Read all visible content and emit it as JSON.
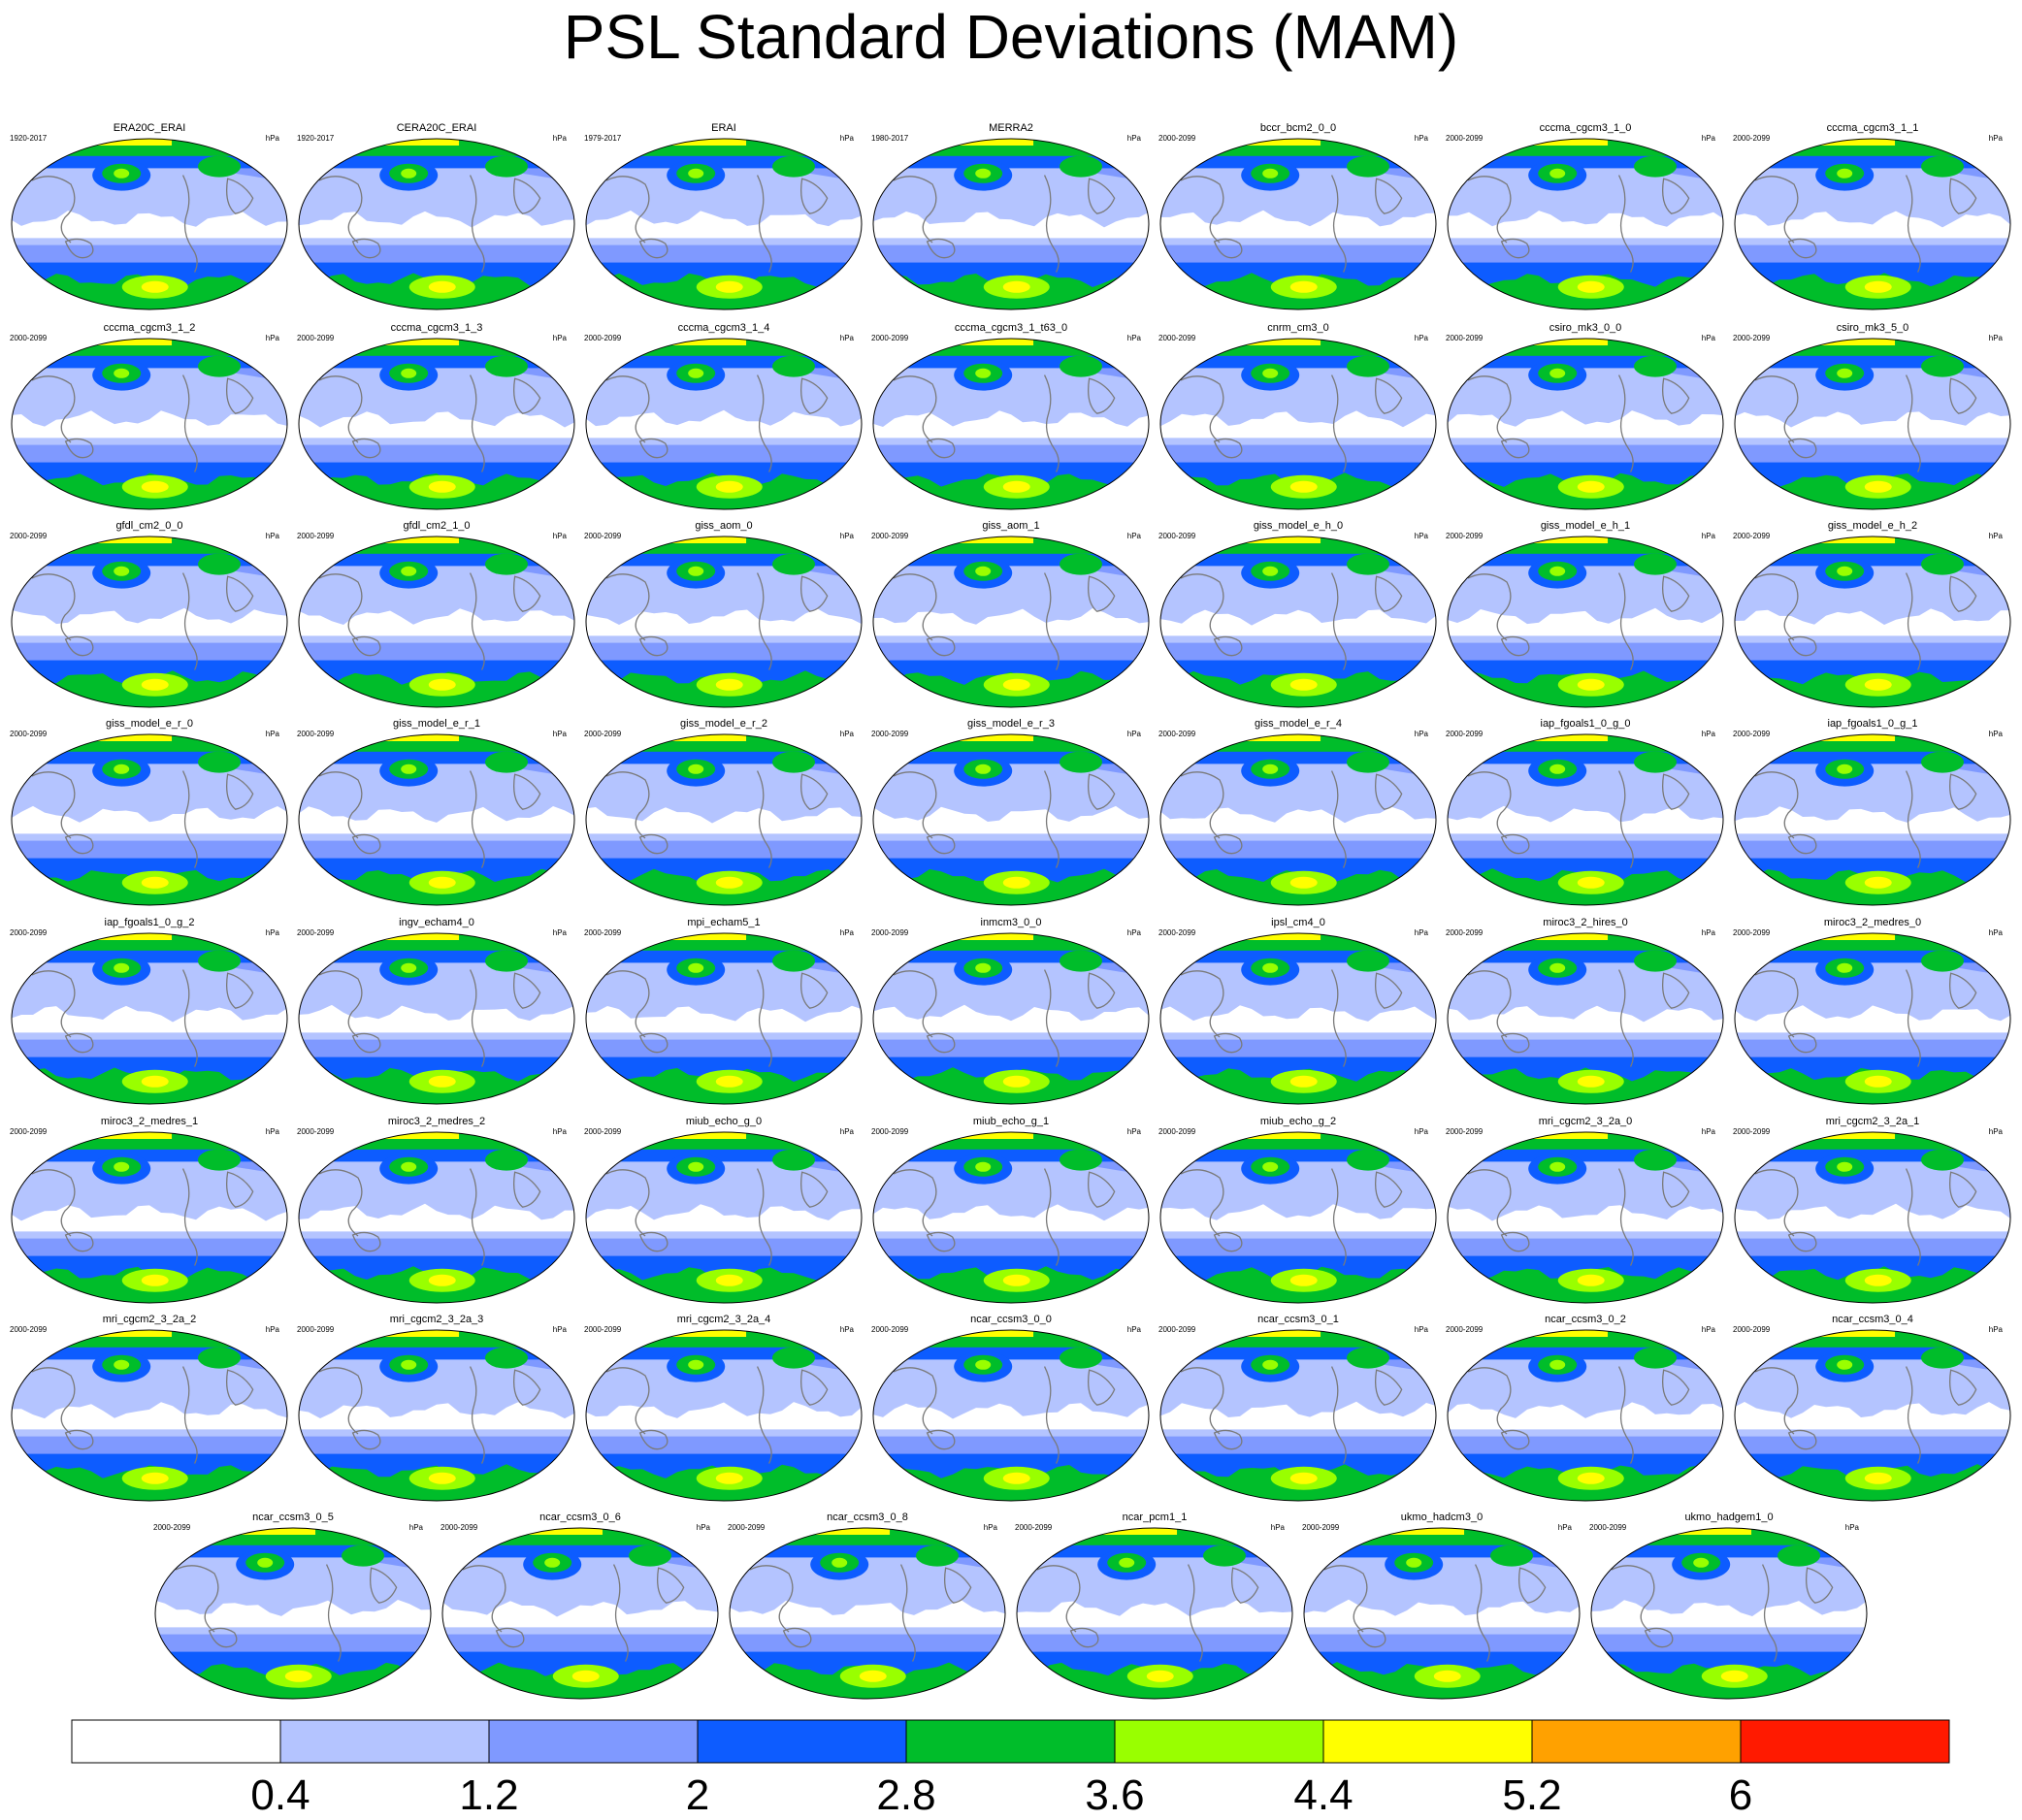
{
  "chart_data": {
    "type": "heatmap",
    "title": "PSL Standard Deviations (MAM)",
    "units": "hPa",
    "colorbar": {
      "levels": [
        0.4,
        1.2,
        2,
        2.8,
        3.6,
        4.4,
        5.2,
        6
      ],
      "tick_labels": [
        "0.4",
        "1.2",
        "2",
        "2.8",
        "3.6",
        "4.4",
        "5.2",
        "6"
      ],
      "colors": [
        "#ffffff",
        "#b4c4ff",
        "#7f99ff",
        "#0d5cff",
        "#00bd2a",
        "#99ff00",
        "#ffff00",
        "#ffa100",
        "#ff1a00"
      ]
    },
    "panels": [
      {
        "name": "ERA20C_ERAI",
        "period": "1920-2017",
        "units": "hPa"
      },
      {
        "name": "CERA20C_ERAI",
        "period": "1920-2017",
        "units": "hPa"
      },
      {
        "name": "ERAI",
        "period": "1979-2017",
        "units": "hPa"
      },
      {
        "name": "MERRA2",
        "period": "1980-2017",
        "units": "hPa"
      },
      {
        "name": "bccr_bcm2_0_0",
        "period": "2000-2099",
        "units": "hPa"
      },
      {
        "name": "cccma_cgcm3_1_0",
        "period": "2000-2099",
        "units": "hPa"
      },
      {
        "name": "cccma_cgcm3_1_1",
        "period": "2000-2099",
        "units": "hPa"
      },
      {
        "name": "cccma_cgcm3_1_2",
        "period": "2000-2099",
        "units": "hPa"
      },
      {
        "name": "cccma_cgcm3_1_3",
        "period": "2000-2099",
        "units": "hPa"
      },
      {
        "name": "cccma_cgcm3_1_4",
        "period": "2000-2099",
        "units": "hPa"
      },
      {
        "name": "cccma_cgcm3_1_t63_0",
        "period": "2000-2099",
        "units": "hPa"
      },
      {
        "name": "cnrm_cm3_0",
        "period": "2000-2099",
        "units": "hPa"
      },
      {
        "name": "csiro_mk3_0_0",
        "period": "2000-2099",
        "units": "hPa"
      },
      {
        "name": "csiro_mk3_5_0",
        "period": "2000-2099",
        "units": "hPa"
      },
      {
        "name": "gfdl_cm2_0_0",
        "period": "2000-2099",
        "units": "hPa"
      },
      {
        "name": "gfdl_cm2_1_0",
        "period": "2000-2099",
        "units": "hPa"
      },
      {
        "name": "giss_aom_0",
        "period": "2000-2099",
        "units": "hPa"
      },
      {
        "name": "giss_aom_1",
        "period": "2000-2099",
        "units": "hPa"
      },
      {
        "name": "giss_model_e_h_0",
        "period": "2000-2099",
        "units": "hPa"
      },
      {
        "name": "giss_model_e_h_1",
        "period": "2000-2099",
        "units": "hPa"
      },
      {
        "name": "giss_model_e_h_2",
        "period": "2000-2099",
        "units": "hPa"
      },
      {
        "name": "giss_model_e_r_0",
        "period": "2000-2099",
        "units": "hPa"
      },
      {
        "name": "giss_model_e_r_1",
        "period": "2000-2099",
        "units": "hPa"
      },
      {
        "name": "giss_model_e_r_2",
        "period": "2000-2099",
        "units": "hPa"
      },
      {
        "name": "giss_model_e_r_3",
        "period": "2000-2099",
        "units": "hPa"
      },
      {
        "name": "giss_model_e_r_4",
        "period": "2000-2099",
        "units": "hPa"
      },
      {
        "name": "iap_fgoals1_0_g_0",
        "period": "2000-2099",
        "units": "hPa"
      },
      {
        "name": "iap_fgoals1_0_g_1",
        "period": "2000-2099",
        "units": "hPa"
      },
      {
        "name": "iap_fgoals1_0_g_2",
        "period": "2000-2099",
        "units": "hPa"
      },
      {
        "name": "ingv_echam4_0",
        "period": "2000-2099",
        "units": "hPa"
      },
      {
        "name": "mpi_echam5_1",
        "period": "2000-2099",
        "units": "hPa"
      },
      {
        "name": "inmcm3_0_0",
        "period": "2000-2099",
        "units": "hPa"
      },
      {
        "name": "ipsl_cm4_0",
        "period": "2000-2099",
        "units": "hPa"
      },
      {
        "name": "miroc3_2_hires_0",
        "period": "2000-2099",
        "units": "hPa"
      },
      {
        "name": "miroc3_2_medres_0",
        "period": "2000-2099",
        "units": "hPa"
      },
      {
        "name": "miroc3_2_medres_1",
        "period": "2000-2099",
        "units": "hPa"
      },
      {
        "name": "miroc3_2_medres_2",
        "period": "2000-2099",
        "units": "hPa"
      },
      {
        "name": "miub_echo_g_0",
        "period": "2000-2099",
        "units": "hPa"
      },
      {
        "name": "miub_echo_g_1",
        "period": "2000-2099",
        "units": "hPa"
      },
      {
        "name": "miub_echo_g_2",
        "period": "2000-2099",
        "units": "hPa"
      },
      {
        "name": "mri_cgcm2_3_2a_0",
        "period": "2000-2099",
        "units": "hPa"
      },
      {
        "name": "mri_cgcm2_3_2a_1",
        "period": "2000-2099",
        "units": "hPa"
      },
      {
        "name": "mri_cgcm2_3_2a_2",
        "period": "2000-2099",
        "units": "hPa"
      },
      {
        "name": "mri_cgcm2_3_2a_3",
        "period": "2000-2099",
        "units": "hPa"
      },
      {
        "name": "mri_cgcm2_3_2a_4",
        "period": "2000-2099",
        "units": "hPa"
      },
      {
        "name": "ncar_ccsm3_0_0",
        "period": "2000-2099",
        "units": "hPa"
      },
      {
        "name": "ncar_ccsm3_0_1",
        "period": "2000-2099",
        "units": "hPa"
      },
      {
        "name": "ncar_ccsm3_0_2",
        "period": "2000-2099",
        "units": "hPa"
      },
      {
        "name": "ncar_ccsm3_0_4",
        "period": "2000-2099",
        "units": "hPa"
      },
      {
        "name": "ncar_ccsm3_0_5",
        "period": "2000-2099",
        "units": "hPa"
      },
      {
        "name": "ncar_ccsm3_0_6",
        "period": "2000-2099",
        "units": "hPa"
      },
      {
        "name": "ncar_ccsm3_0_8",
        "period": "2000-2099",
        "units": "hPa"
      },
      {
        "name": "ncar_pcm1_1",
        "period": "2000-2099",
        "units": "hPa"
      },
      {
        "name": "ukmo_hadcm3_0",
        "period": "2000-2099",
        "units": "hPa"
      },
      {
        "name": "ukmo_hadgem1_0",
        "period": "2000-2099",
        "units": "hPa"
      }
    ]
  }
}
